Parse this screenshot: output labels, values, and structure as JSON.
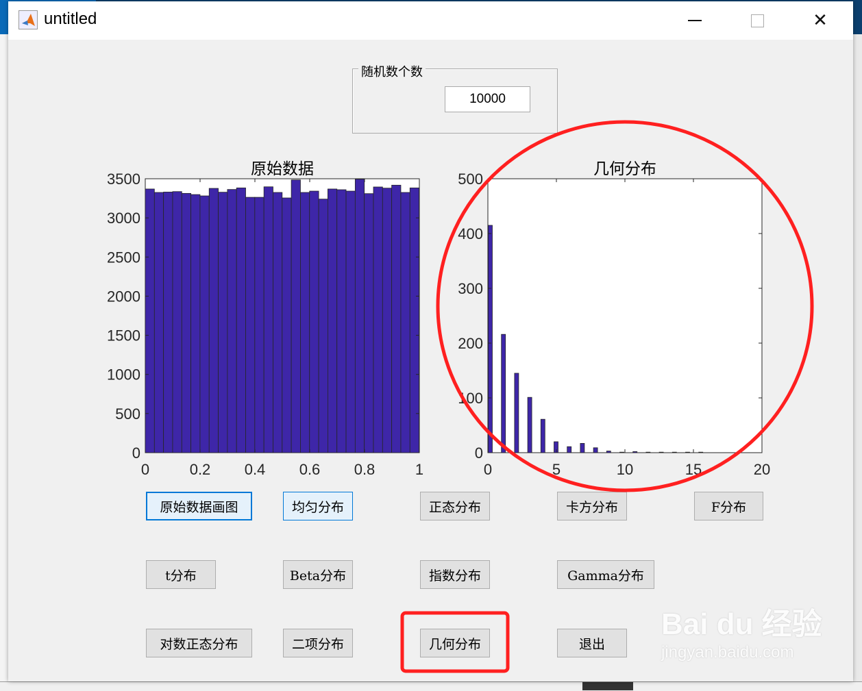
{
  "window": {
    "title": "untitled",
    "minimize_icon": "minimize-icon",
    "maximize_icon": "maximize-icon",
    "close_icon": "close-icon"
  },
  "panel": {
    "title": "随机数个数",
    "value": "10000"
  },
  "charts": {
    "left_title": "原始数据",
    "right_title": "几何分布"
  },
  "chart_data": [
    {
      "type": "bar",
      "title": "原始数据",
      "xlim": [
        0,
        1
      ],
      "ylim": [
        0,
        3500
      ],
      "xticks": [
        "0",
        "0.2",
        "0.4",
        "0.6",
        "0.8",
        "1"
      ],
      "yticks": [
        "0",
        "500",
        "1000",
        "1500",
        "2000",
        "2500",
        "3000",
        "3500"
      ],
      "bin_width": 0.0333,
      "values": [
        3369,
        3325,
        3330,
        3336,
        3313,
        3298,
        3281,
        3377,
        3328,
        3363,
        3383,
        3263,
        3263,
        3397,
        3325,
        3255,
        3485,
        3325,
        3342,
        3240,
        3369,
        3360,
        3342,
        3494,
        3310,
        3395,
        3380,
        3418,
        3325,
        3383
      ],
      "color": "#3e26a8"
    },
    {
      "type": "bar",
      "title": "几何分布",
      "xlim": [
        0,
        20
      ],
      "ylim": [
        0,
        500
      ],
      "xticks": [
        "0",
        "5",
        "10",
        "15",
        "20"
      ],
      "yticks": [
        "0",
        "100",
        "200",
        "300",
        "400",
        "500"
      ],
      "x": [
        0,
        1,
        2,
        3,
        4,
        5,
        6,
        7,
        8,
        9,
        10,
        11,
        12,
        13,
        14,
        15,
        16
      ],
      "values": [
        415,
        216,
        145,
        101,
        61,
        20,
        11,
        17,
        9,
        3,
        1,
        2,
        1,
        1,
        1,
        1,
        1
      ],
      "color": "#3e26a8"
    }
  ],
  "buttons": [
    {
      "label": "原始数据画图"
    },
    {
      "label": "均匀分布"
    },
    {
      "label": "正态分布"
    },
    {
      "label": "卡方分布"
    },
    {
      "label": "F分布"
    },
    {
      "label": "t分布"
    },
    {
      "label": "Beta分布"
    },
    {
      "label": "指数分布"
    },
    {
      "label": "Gamma分布"
    },
    {
      "label": "对数正态分布"
    },
    {
      "label": "二项分布"
    },
    {
      "label": "几何分布"
    },
    {
      "label": "退出"
    }
  ],
  "annotation_color": "#ff2020",
  "watermark": {
    "brand": "Bai du 经验",
    "url": "jingyan.baidu.com"
  }
}
